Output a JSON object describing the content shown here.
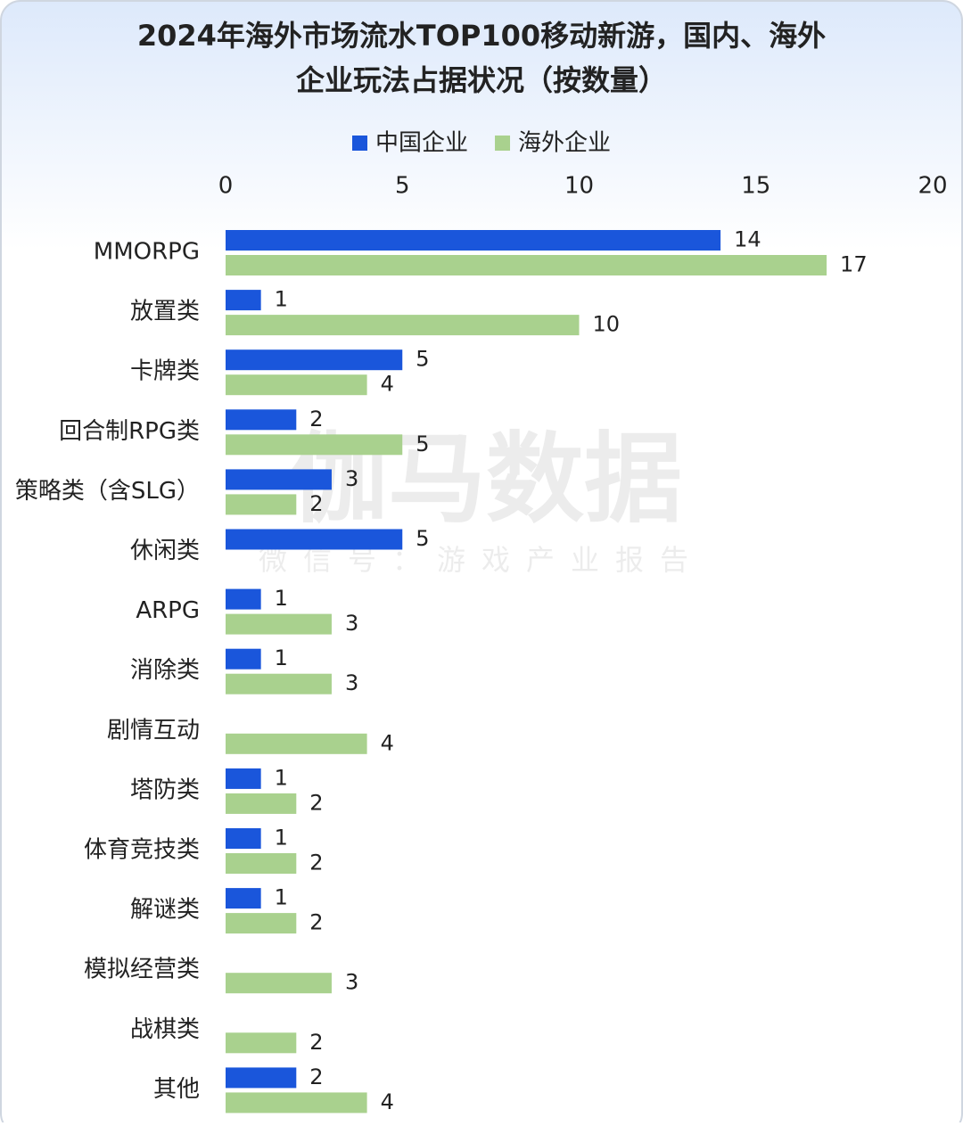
{
  "chart_data": {
    "type": "hbar",
    "title": [
      "2024年海外市场流水TOP100移动新游，国内、海外",
      "企业玩法占据状况（按数量）"
    ],
    "watermark": [
      "伽马数据",
      "微信号：游戏产业报告"
    ],
    "categories": [
      "MMORPG",
      "放置类",
      "卡牌类",
      "回合制RPG类",
      "策略类（含SLG）",
      "休闲类",
      "ARPG",
      "消除类",
      "剧情互动",
      "塔防类",
      "体育竞技类",
      "解谜类",
      "模拟经营类",
      "战棋类",
      "其他"
    ],
    "series": [
      {
        "name": "中国企业",
        "color": "#1a56db",
        "values": [
          14,
          1,
          5,
          2,
          3,
          5,
          1,
          1,
          null,
          1,
          1,
          1,
          null,
          null,
          2
        ]
      },
      {
        "name": "海外企业",
        "color": "#a9d18e",
        "values": [
          17,
          10,
          4,
          5,
          2,
          null,
          3,
          3,
          4,
          2,
          2,
          2,
          3,
          2,
          4
        ]
      }
    ],
    "xlim": [
      0,
      20
    ],
    "xticks": [
      0,
      5,
      10,
      15,
      20
    ],
    "legend": "top"
  }
}
